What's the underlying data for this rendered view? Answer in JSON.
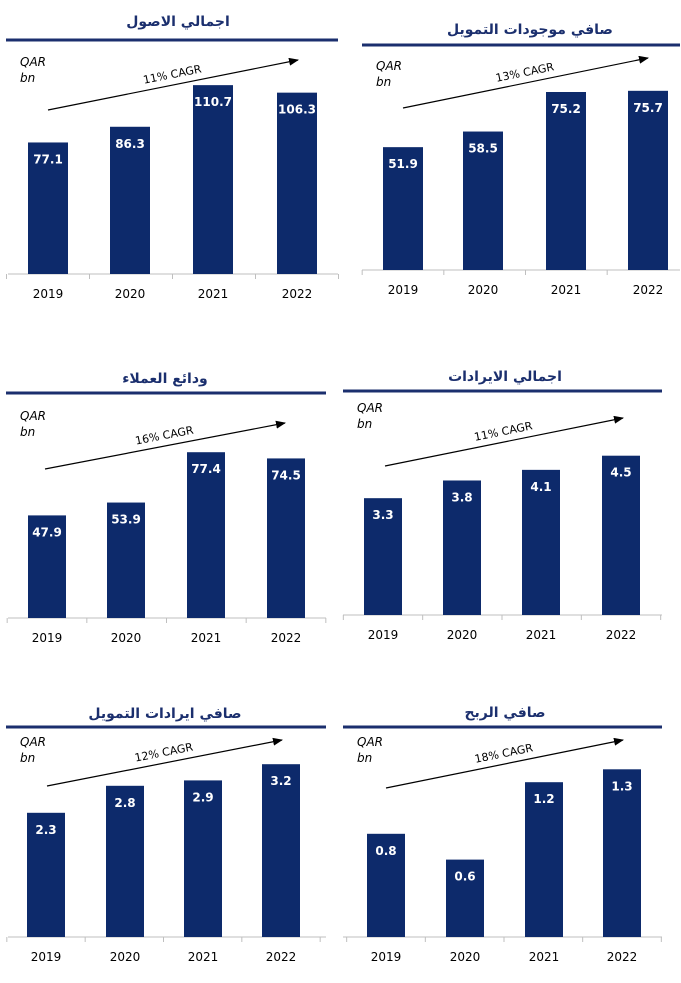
{
  "colors": {
    "bar": "#0d2a6b",
    "title_line": "#1b2f6e",
    "axis": "#bfbfbf",
    "arrow": "#000000",
    "label": "#ffffff"
  },
  "chart_data": [
    {
      "type": "bar",
      "title": "اجمالي الاصول",
      "unit_line1": "QAR",
      "unit_line2": "bn",
      "cagr": "11% CAGR",
      "categories": [
        "2019",
        "2020",
        "2021",
        "2022"
      ],
      "values": [
        77.1,
        86.3,
        110.7,
        106.3
      ],
      "ylim": [
        0,
        120
      ]
    },
    {
      "type": "bar",
      "title": "صافي موجودات التمويل",
      "unit_line1": "QAR",
      "unit_line2": "bn",
      "cagr": "13% CAGR",
      "categories": [
        "2019",
        "2020",
        "2021",
        "2022"
      ],
      "values": [
        51.9,
        58.5,
        75.2,
        75.7
      ],
      "ylim": [
        0,
        81
      ]
    },
    {
      "type": "bar",
      "title": "ودائع العملاء",
      "unit_line1": "QAR",
      "unit_line2": "bn",
      "cagr": "16% CAGR",
      "categories": [
        "2019",
        "2020",
        "2021",
        "2022"
      ],
      "values": [
        47.9,
        53.9,
        77.4,
        74.5
      ],
      "ylim": [
        0,
        84
      ]
    },
    {
      "type": "bar",
      "title": "اجمالي الايرادات",
      "unit_line1": "QAR",
      "unit_line2": "bn",
      "cagr": "11% CAGR",
      "categories": [
        "2019",
        "2020",
        "2021",
        "2022"
      ],
      "values": [
        3.3,
        3.8,
        4.1,
        4.5
      ],
      "ylim": [
        0,
        4.8
      ]
    },
    {
      "type": "bar",
      "title": "صافي ايرادات التمويل",
      "unit_line1": "QAR",
      "unit_line2": "bn",
      "cagr": "12% CAGR",
      "categories": [
        "2019",
        "2020",
        "2021",
        "2022"
      ],
      "values": [
        2.3,
        2.8,
        2.9,
        3.2
      ],
      "ylim": [
        0,
        3.4
      ]
    },
    {
      "type": "bar",
      "title": "صافي الربح",
      "unit_line1": "QAR",
      "unit_line2": "bn",
      "cagr": "18% CAGR",
      "categories": [
        "2019",
        "2020",
        "2021",
        "2022"
      ],
      "values": [
        0.8,
        0.6,
        1.2,
        1.3
      ],
      "ylim": [
        0,
        1.5
      ]
    }
  ]
}
